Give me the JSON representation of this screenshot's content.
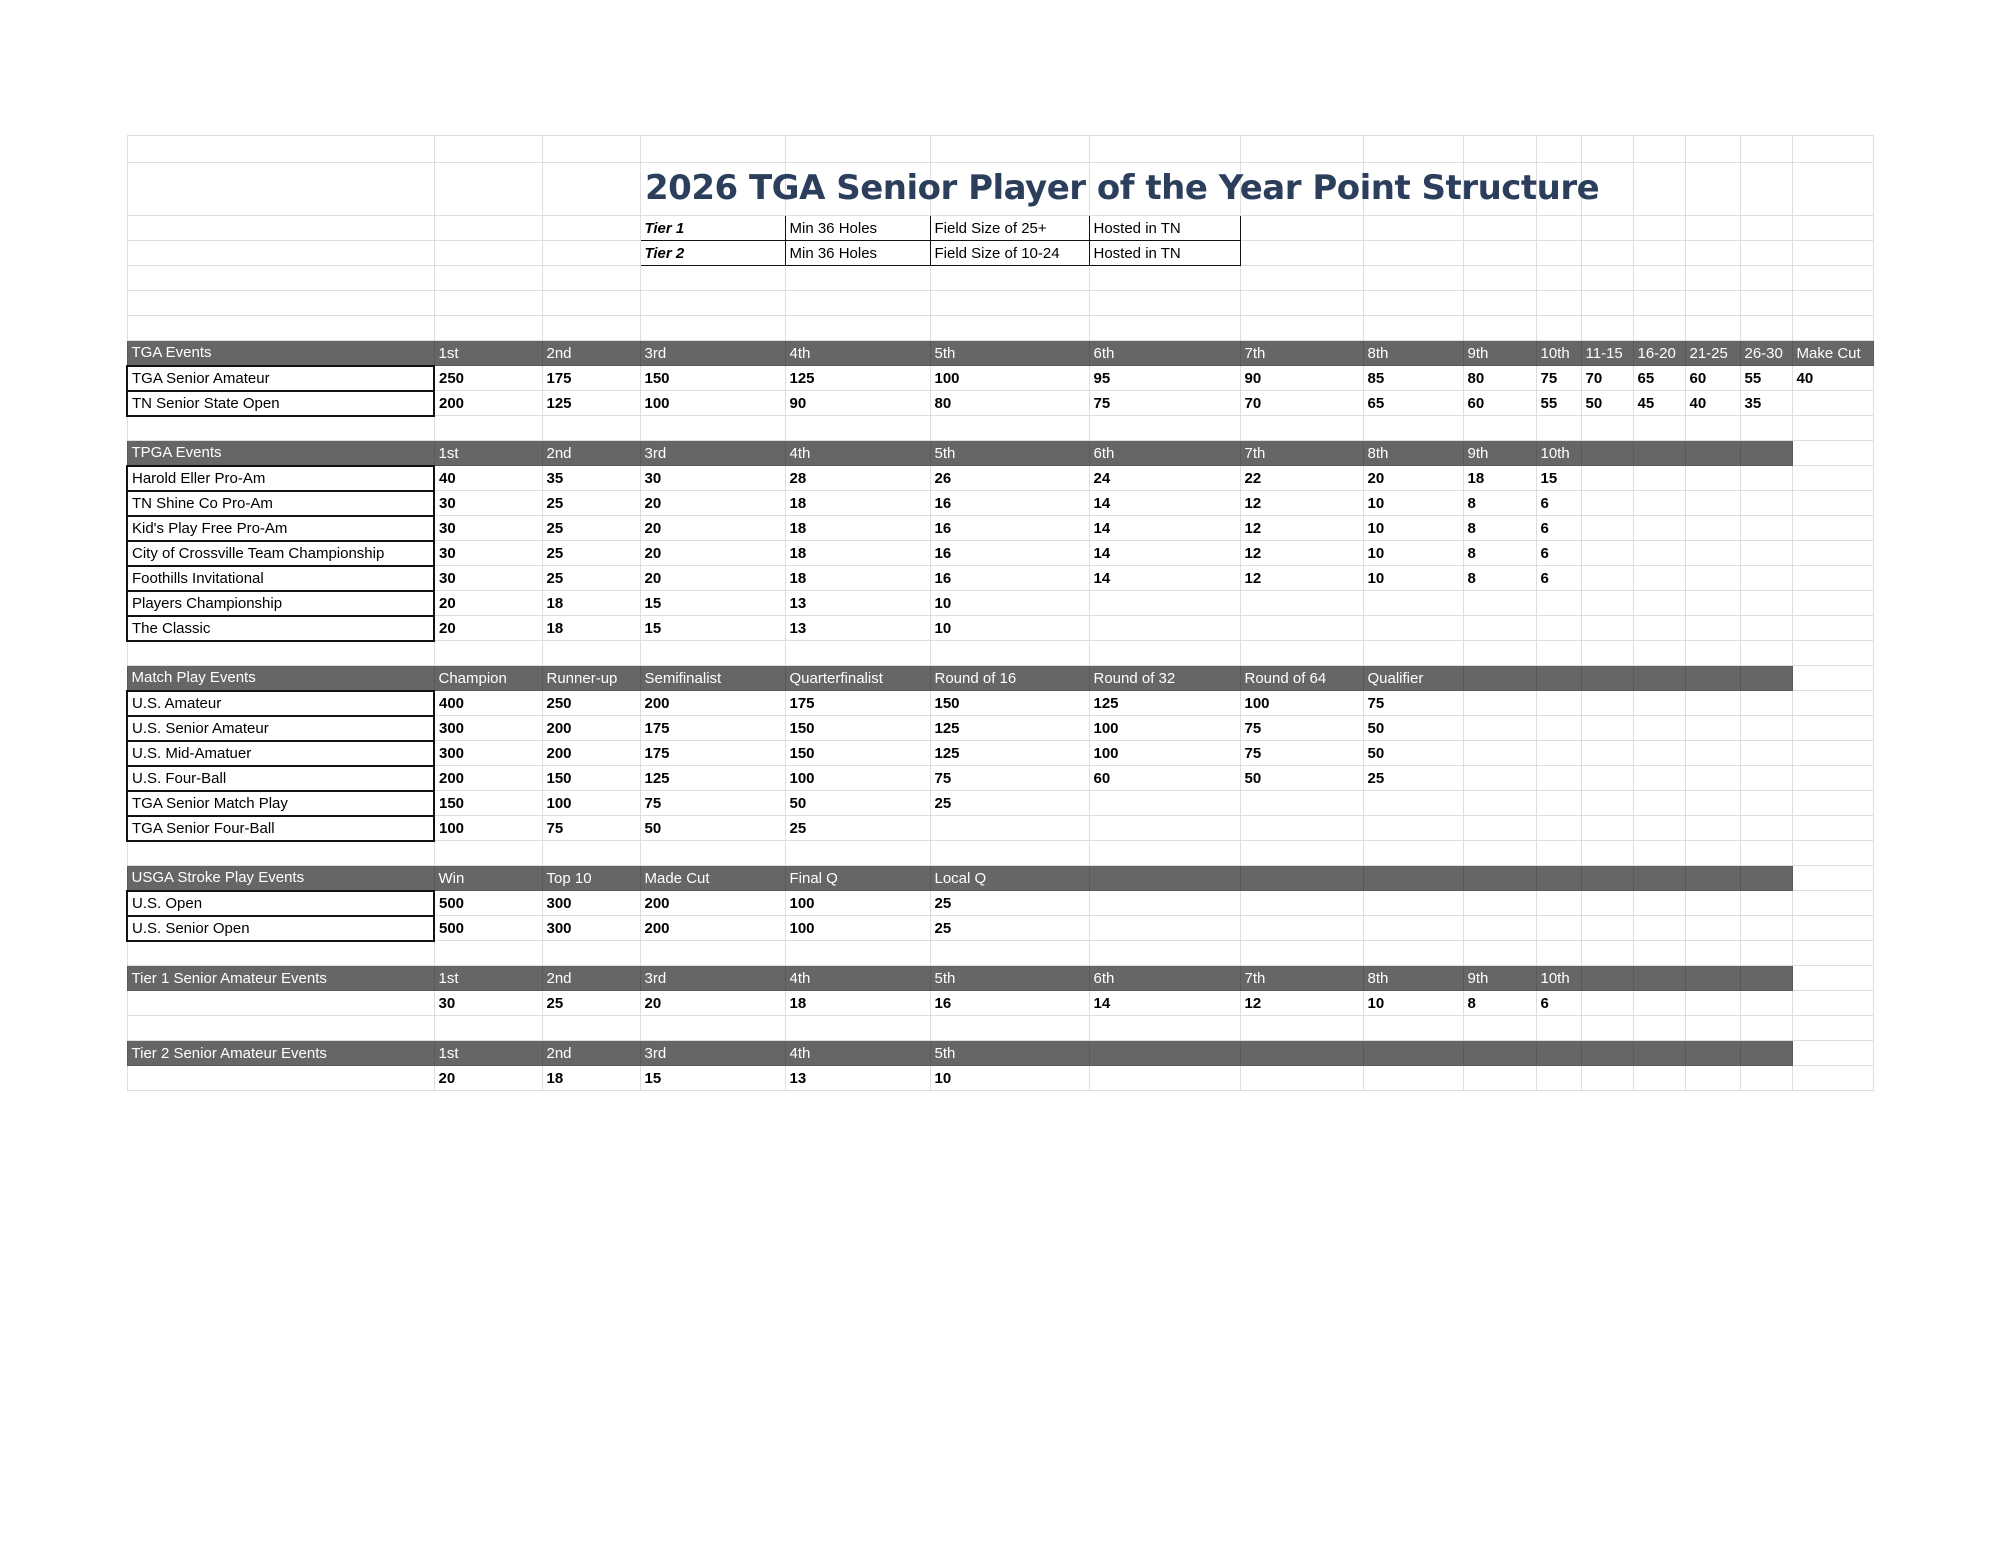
{
  "title": "2026 TGA Senior Player of the Year Point Structure",
  "tiers": [
    {
      "label": "Tier 1",
      "holes": "Min 36 Holes",
      "field": "Field Size of 25+",
      "hosted": "Hosted in TN"
    },
    {
      "label": "Tier 2",
      "holes": "Min 36 Holes",
      "field": "Field Size of 10-24",
      "hosted": "Hosted in TN"
    }
  ],
  "colors": {
    "header_bg": "#666666",
    "title": "#2b3e5c"
  },
  "sections": [
    {
      "header": [
        "TGA Events",
        "1st",
        "2nd",
        "3rd",
        "4th",
        "5th",
        "6th",
        "7th",
        "8th",
        "9th",
        "10th",
        "11-15",
        "16-20",
        "21-25",
        "26-30",
        "Make Cut"
      ],
      "rows": [
        {
          "name": "TGA Senior Amateur",
          "values": [
            "250",
            "175",
            "150",
            "125",
            "100",
            "95",
            "90",
            "85",
            "80",
            "75",
            "70",
            "65",
            "60",
            "55",
            "40"
          ]
        },
        {
          "name": "TN Senior State Open",
          "values": [
            "200",
            "125",
            "100",
            "90",
            "80",
            "75",
            "70",
            "65",
            "60",
            "55",
            "50",
            "45",
            "40",
            "35",
            ""
          ]
        }
      ]
    },
    {
      "header": [
        "TPGA Events",
        "1st",
        "2nd",
        "3rd",
        "4th",
        "5th",
        "6th",
        "7th",
        "8th",
        "9th",
        "10th"
      ],
      "rows": [
        {
          "name": "Harold Eller Pro-Am",
          "values": [
            "40",
            "35",
            "30",
            "28",
            "26",
            "24",
            "22",
            "20",
            "18",
            "15"
          ]
        },
        {
          "name": "TN Shine Co Pro-Am",
          "values": [
            "30",
            "25",
            "20",
            "18",
            "16",
            "14",
            "12",
            "10",
            "8",
            "6"
          ]
        },
        {
          "name": "Kid's Play Free Pro-Am",
          "values": [
            "30",
            "25",
            "20",
            "18",
            "16",
            "14",
            "12",
            "10",
            "8",
            "6"
          ]
        },
        {
          "name": "City of Crossville Team Championship",
          "values": [
            "30",
            "25",
            "20",
            "18",
            "16",
            "14",
            "12",
            "10",
            "8",
            "6"
          ]
        },
        {
          "name": "Foothills Invitational",
          "values": [
            "30",
            "25",
            "20",
            "18",
            "16",
            "14",
            "12",
            "10",
            "8",
            "6"
          ]
        },
        {
          "name": "Players Championship",
          "values": [
            "20",
            "18",
            "15",
            "13",
            "10"
          ]
        },
        {
          "name": "The Classic",
          "values": [
            "20",
            "18",
            "15",
            "13",
            "10"
          ]
        }
      ]
    },
    {
      "header": [
        "Match Play Events",
        "Champion",
        "Runner-up",
        "Semifinalist",
        "Quarterfinalist",
        "Round of 16",
        "Round of 32",
        "Round of 64",
        "Qualifier"
      ],
      "rows": [
        {
          "name": "U.S. Amateur",
          "values": [
            "400",
            "250",
            "200",
            "175",
            "150",
            "125",
            "100",
            "75"
          ]
        },
        {
          "name": "U.S. Senior Amateur",
          "values": [
            "300",
            "200",
            "175",
            "150",
            "125",
            "100",
            "75",
            "50"
          ]
        },
        {
          "name": "U.S. Mid-Amatuer",
          "values": [
            "300",
            "200",
            "175",
            "150",
            "125",
            "100",
            "75",
            "50"
          ]
        },
        {
          "name": "U.S. Four-Ball",
          "values": [
            "200",
            "150",
            "125",
            "100",
            "75",
            "60",
            "50",
            "25"
          ]
        },
        {
          "name": "TGA Senior Match Play",
          "values": [
            "150",
            "100",
            "75",
            "50",
            "25"
          ]
        },
        {
          "name": "TGA Senior Four-Ball",
          "values": [
            "100",
            "75",
            "50",
            "25"
          ]
        }
      ]
    },
    {
      "header": [
        "USGA Stroke Play Events",
        "Win",
        "Top 10",
        "Made Cut",
        "Final Q",
        "Local Q"
      ],
      "rows": [
        {
          "name": "U.S. Open",
          "values": [
            "500",
            "300",
            "200",
            "100",
            "25"
          ]
        },
        {
          "name": "U.S. Senior Open",
          "values": [
            "500",
            "300",
            "200",
            "100",
            "25"
          ]
        }
      ]
    },
    {
      "header": [
        "Tier 1 Senior Amateur Events",
        "1st",
        "2nd",
        "3rd",
        "4th",
        "5th",
        "6th",
        "7th",
        "8th",
        "9th",
        "10th"
      ],
      "rows": [
        {
          "name": "",
          "values": [
            "30",
            "25",
            "20",
            "18",
            "16",
            "14",
            "12",
            "10",
            "8",
            "6"
          ]
        }
      ]
    },
    {
      "header": [
        "Tier 2 Senior Amateur Events",
        "1st",
        "2nd",
        "3rd",
        "4th",
        "5th"
      ],
      "rows": [
        {
          "name": "",
          "values": [
            "20",
            "18",
            "15",
            "13",
            "10"
          ]
        }
      ]
    }
  ]
}
